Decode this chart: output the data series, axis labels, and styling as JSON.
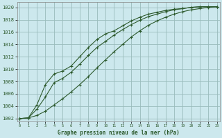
{
  "title": "Graphe pression niveau de la mer (hPa)",
  "bg_color": "#cce8ed",
  "grid_color": "#99bbbb",
  "line_color": "#2d5a2d",
  "xlim": [
    -0.3,
    23.3
  ],
  "ylim": [
    1001.5,
    1020.8
  ],
  "yticks": [
    1002,
    1004,
    1006,
    1008,
    1010,
    1012,
    1014,
    1016,
    1018,
    1020
  ],
  "xticks": [
    0,
    1,
    2,
    3,
    4,
    5,
    6,
    7,
    8,
    9,
    10,
    11,
    12,
    13,
    14,
    15,
    16,
    17,
    18,
    19,
    20,
    21,
    22,
    23
  ],
  "line1_x": [
    0,
    1,
    2,
    3,
    4,
    5,
    6,
    7,
    8,
    9,
    10,
    11,
    12,
    13,
    14,
    15,
    16,
    17,
    18,
    19,
    20,
    21,
    22,
    23
  ],
  "line1_y": [
    1002.0,
    1002.1,
    1004.2,
    1007.5,
    1009.2,
    1009.7,
    1010.5,
    1012.0,
    1013.5,
    1014.8,
    1015.7,
    1016.2,
    1017.0,
    1017.8,
    1018.4,
    1018.9,
    1019.2,
    1019.5,
    1019.7,
    1019.8,
    1020.0,
    1020.1,
    1020.1,
    1020.1
  ],
  "line2_x": [
    0,
    1,
    2,
    3,
    4,
    5,
    6,
    7,
    8,
    9,
    10,
    11,
    12,
    13,
    14,
    15,
    16,
    17,
    18,
    19,
    20,
    21,
    22,
    23
  ],
  "line2_y": [
    1002.0,
    1002.1,
    1002.5,
    1003.2,
    1004.2,
    1005.2,
    1006.3,
    1007.5,
    1008.8,
    1010.2,
    1011.5,
    1012.8,
    1014.0,
    1015.2,
    1016.2,
    1017.1,
    1017.8,
    1018.4,
    1018.9,
    1019.3,
    1019.6,
    1019.8,
    1020.0,
    1020.1
  ],
  "line3_x": [
    0,
    1,
    2,
    3,
    4,
    5,
    6,
    7,
    8,
    9,
    10,
    11,
    12,
    13,
    14,
    15,
    16,
    17,
    18,
    19,
    20,
    21,
    22,
    23
  ],
  "line3_y": [
    1002.0,
    1002.1,
    1003.5,
    1005.5,
    1007.8,
    1008.5,
    1009.5,
    1010.8,
    1012.2,
    1013.5,
    1014.5,
    1015.5,
    1016.4,
    1017.2,
    1017.9,
    1018.5,
    1018.9,
    1019.3,
    1019.6,
    1019.8,
    1020.0,
    1020.1,
    1020.1,
    1020.1
  ]
}
